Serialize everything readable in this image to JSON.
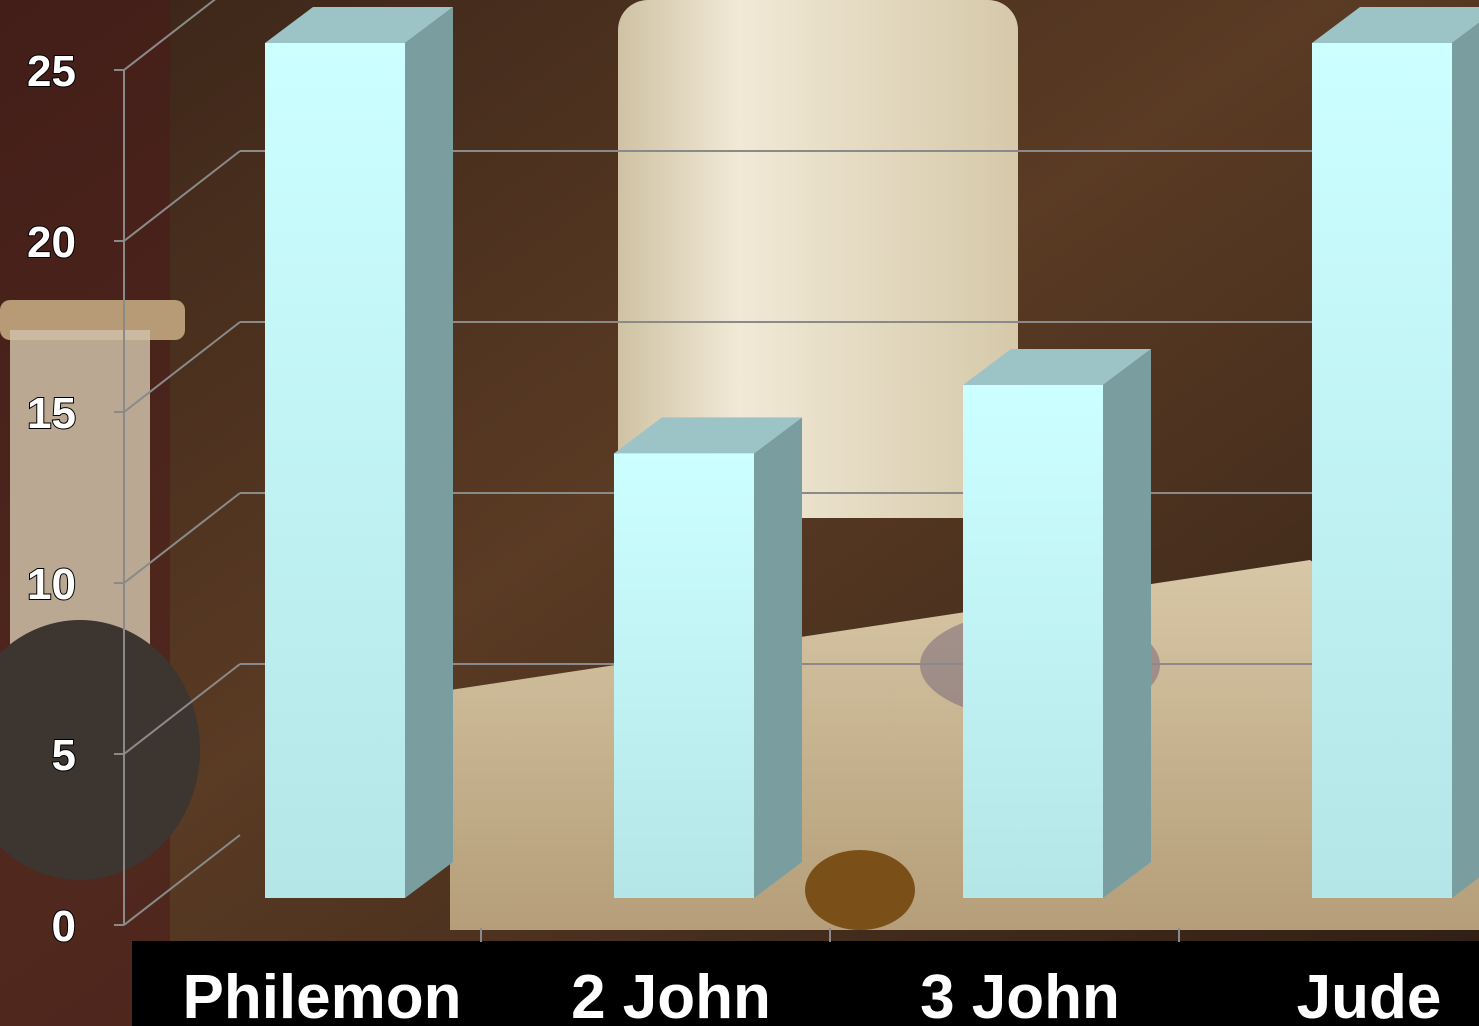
{
  "chart_data": {
    "type": "bar",
    "categories": [
      "Philemon",
      "2 John",
      "3 John",
      "Jude"
    ],
    "values": [
      25,
      13,
      15,
      25
    ],
    "ylim": [
      0,
      25
    ],
    "yticks": [
      0,
      5,
      10,
      15,
      20,
      25
    ],
    "grid": true,
    "three_d": true,
    "colors": {
      "bar_front": "#ccffff",
      "bar_side": "#7a9ea0",
      "bar_top": "#9cc4c6",
      "gridline": "#8a8a8a",
      "label_band": "#000000",
      "text": "#ffffff"
    }
  }
}
